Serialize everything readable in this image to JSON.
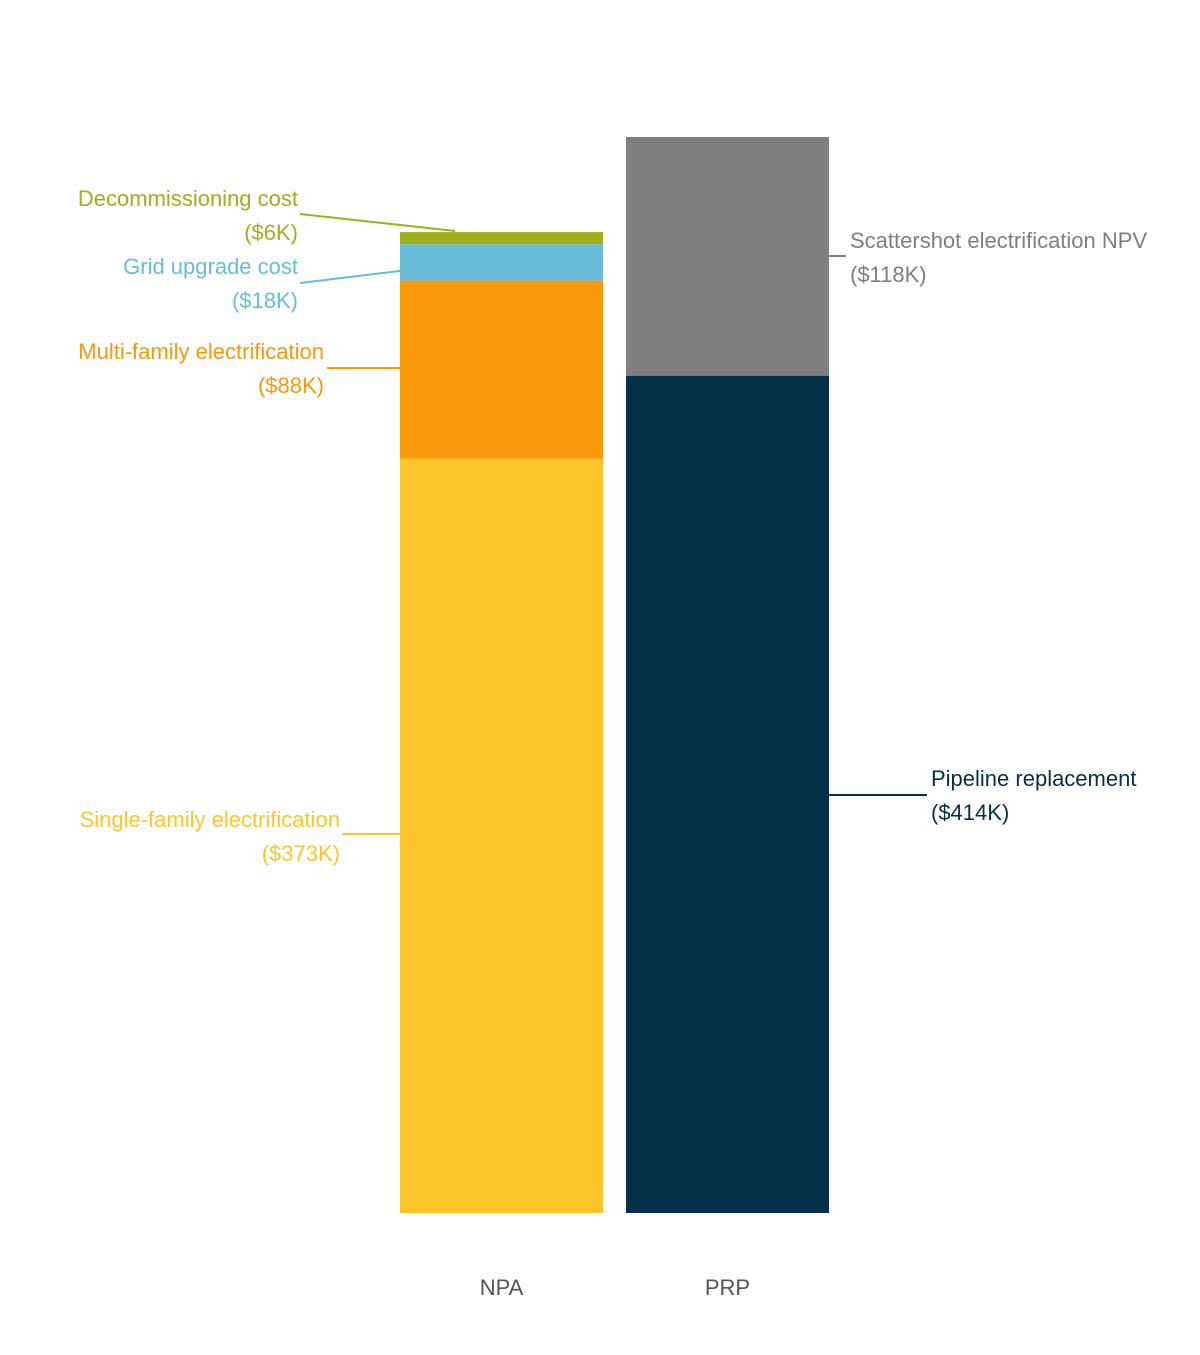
{
  "chart_data": {
    "type": "bar",
    "stacked": true,
    "title": "",
    "xlabel": "",
    "ylabel": "",
    "categories": [
      "NPA",
      "PRP"
    ],
    "ylim": [
      0,
      532
    ],
    "grid": false,
    "stacks": [
      {
        "category": "NPA",
        "segments": [
          {
            "key": "single_family",
            "label": "Single-family electrification",
            "value_label": "($373K)",
            "value": 373,
            "color": "#FCC62B"
          },
          {
            "key": "multi_family",
            "label": "Multi-family electrification",
            "value_label": "($88K)",
            "value": 88,
            "color": "#F99808"
          },
          {
            "key": "grid_upgrade",
            "label": "Grid upgrade cost",
            "value_label": "($18K)",
            "value": 18,
            "color": "#68BCD9"
          },
          {
            "key": "decommissioning",
            "label": "Decommissioning cost",
            "value_label": "($6K)",
            "value": 6,
            "color": "#9FAE1D"
          }
        ]
      },
      {
        "category": "PRP",
        "segments": [
          {
            "key": "pipeline",
            "label": "Pipeline replacement",
            "value_label": "($414K)",
            "value": 414,
            "color": "#04304A"
          },
          {
            "key": "scattershot",
            "label": "Scattershot electrification NPV",
            "value_label": "($118K)",
            "value": 118,
            "color": "#7F7F7F"
          }
        ]
      }
    ]
  }
}
